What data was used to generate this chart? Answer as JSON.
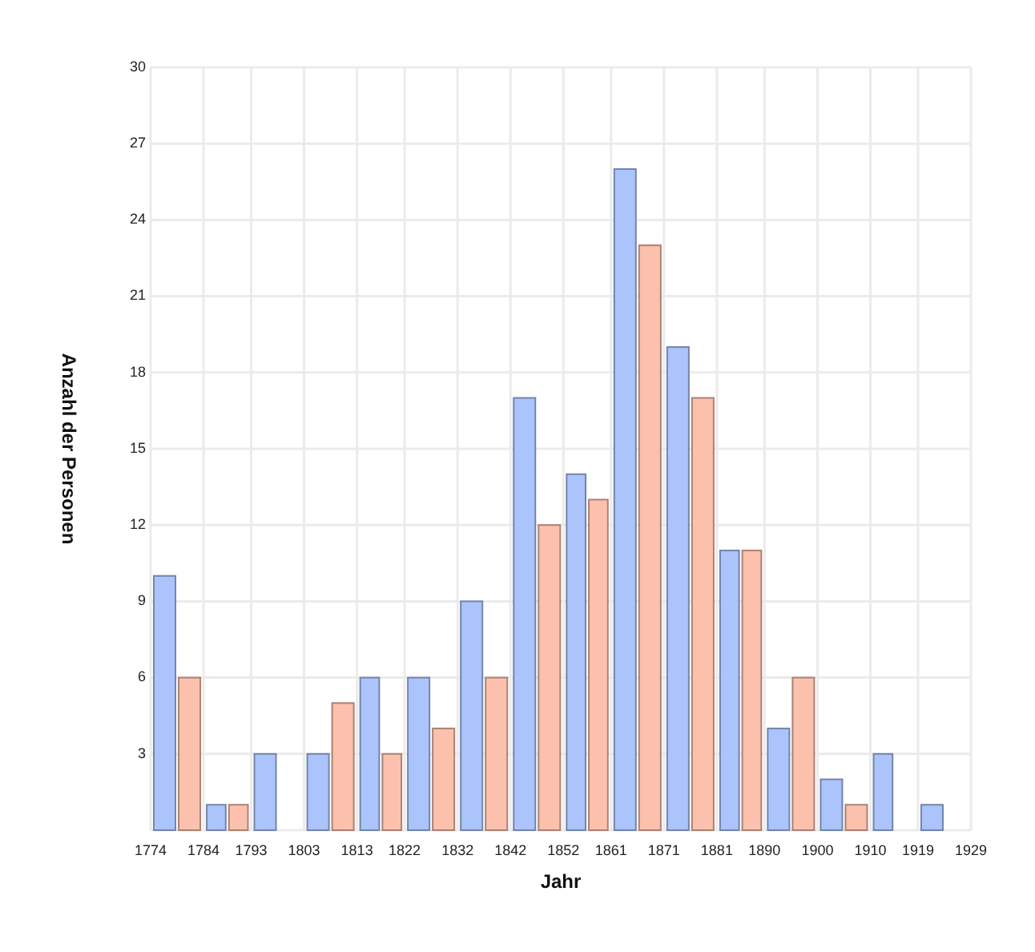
{
  "chart_data": {
    "type": "histogram",
    "xlabel": "Jahr",
    "ylabel": "Anzahl der Personen",
    "bins": [
      1774,
      1784,
      1793,
      1803,
      1813,
      1822,
      1832,
      1842,
      1852,
      1861,
      1871,
      1881,
      1890,
      1900,
      1910,
      1919,
      1929
    ],
    "series": [
      {
        "color": "#abc4fb",
        "values": [
          10,
          1,
          3,
          3,
          6,
          6,
          9,
          17,
          14,
          26,
          19,
          11,
          4,
          2,
          3,
          1
        ]
      },
      {
        "color": "#fbc1ad",
        "values": [
          6,
          1,
          0,
          5,
          3,
          4,
          6,
          12,
          13,
          23,
          17,
          11,
          6,
          1,
          0,
          0
        ]
      }
    ],
    "xlim": [
      1774,
      1929
    ],
    "ylim": [
      0,
      30
    ],
    "xticks": [
      1774,
      1784,
      1793,
      1803,
      1813,
      1822,
      1832,
      1842,
      1852,
      1861,
      1871,
      1881,
      1890,
      1900,
      1910,
      1919,
      1929
    ],
    "yticks": [
      {
        "value": 0,
        "label": null
      },
      3,
      6,
      9,
      12,
      15,
      18,
      21,
      24,
      27,
      30
    ],
    "grid": true
  }
}
